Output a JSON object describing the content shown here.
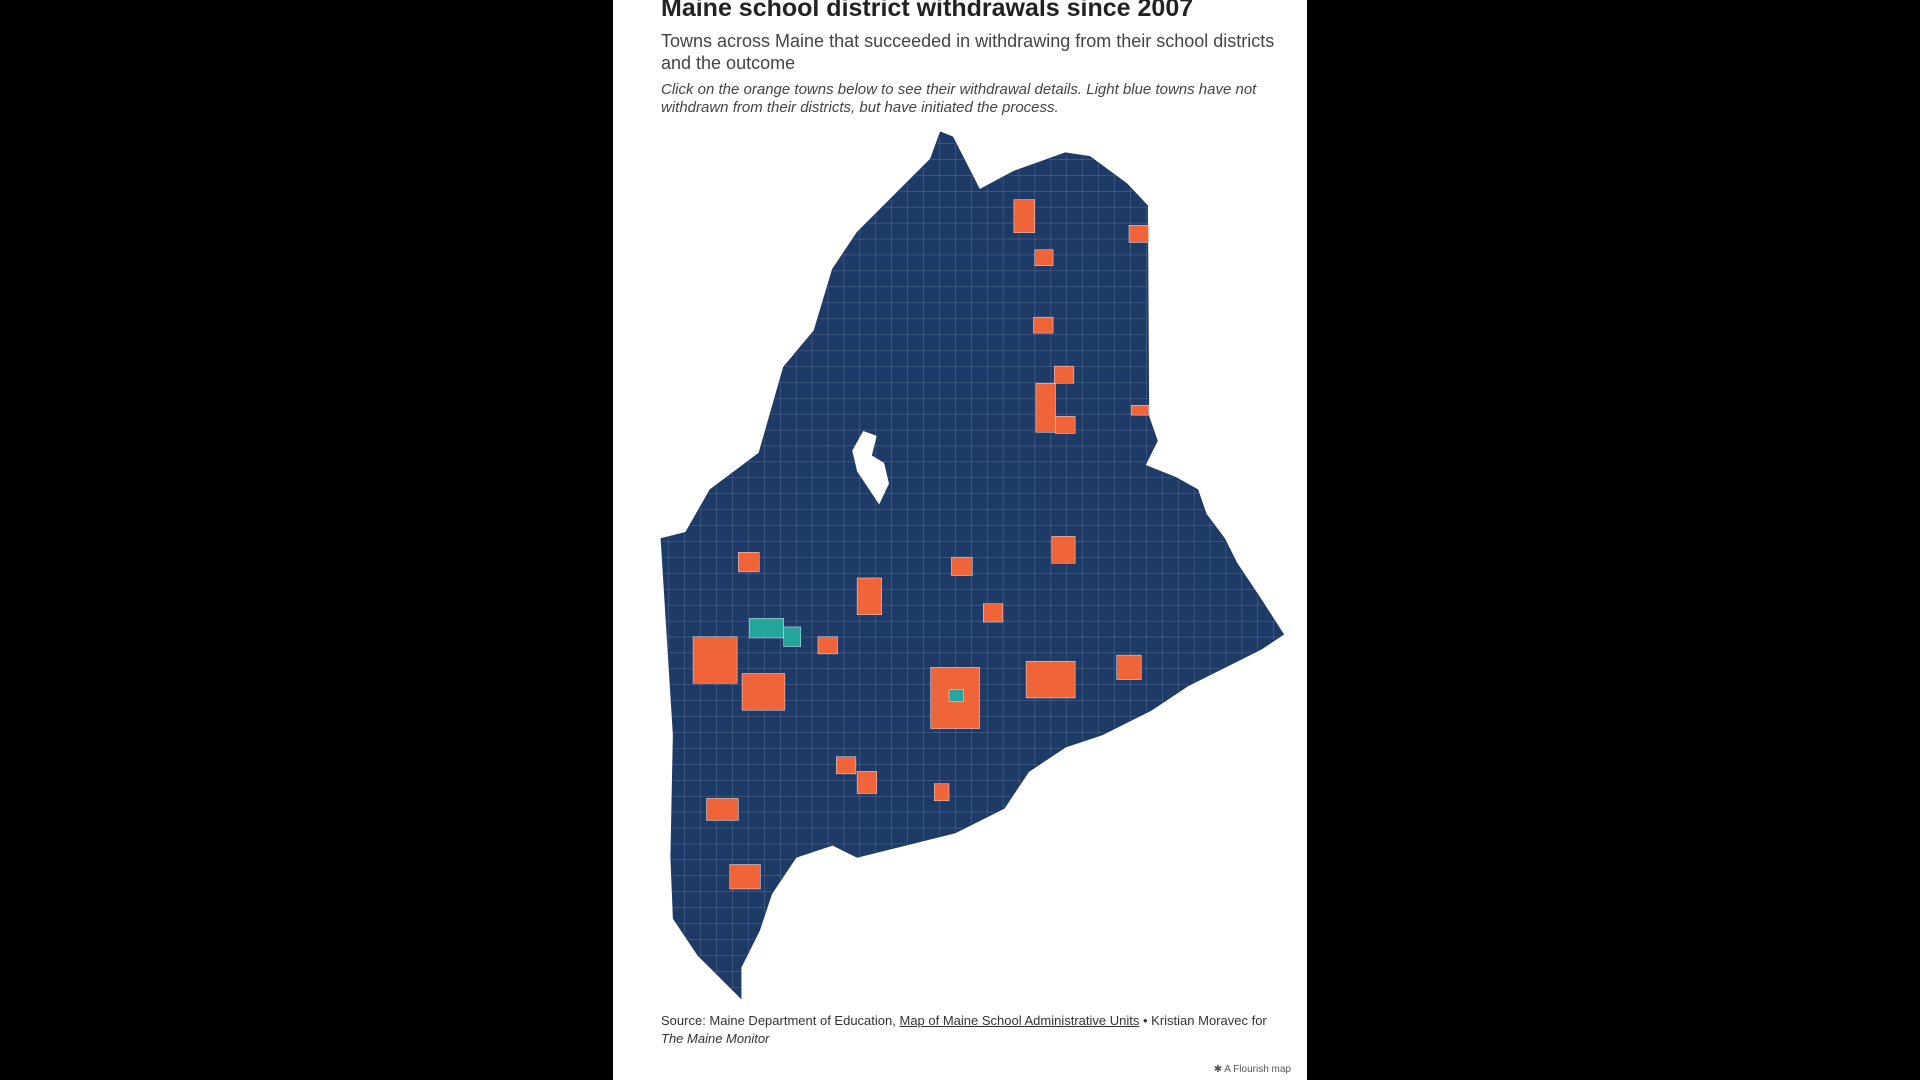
{
  "header": {
    "title": "Maine school district withdrawals since 2007",
    "subtitle": "Towns across Maine that succeeded in withdrawing from their school districts and the outcome",
    "note": "Click on the orange towns below to see their withdrawal details. Light blue towns have not withdrawn from their districts, but have initiated the process."
  },
  "footer": {
    "source_prefix": "Source: Maine Department of Education,",
    "source_link": "Map of Maine School Administrative Units",
    "credit_prefix": "• Kristian Moravec for",
    "publication": "The Maine Monitor",
    "badge": "A Flourish map"
  }
}
